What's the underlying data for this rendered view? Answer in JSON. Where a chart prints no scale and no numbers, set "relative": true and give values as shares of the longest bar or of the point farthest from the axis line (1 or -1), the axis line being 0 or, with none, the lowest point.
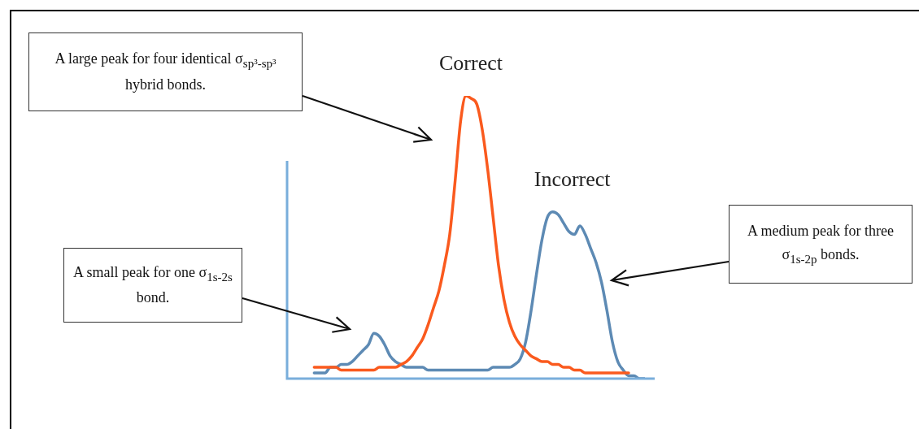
{
  "chart_data": {
    "type": "line",
    "relative": true,
    "legend": false,
    "marker": "none",
    "line_style": "solid",
    "categories": [
      null,
      null,
      null,
      null,
      null,
      null,
      null,
      null,
      null,
      null,
      null,
      null,
      null,
      null,
      null,
      null,
      null,
      null,
      null,
      null,
      null,
      null,
      null,
      null,
      null,
      null,
      null,
      null,
      null,
      null,
      null,
      null,
      null,
      null,
      null,
      null,
      null,
      null,
      null,
      null,
      null,
      null,
      null,
      null,
      null,
      null,
      null,
      null,
      null,
      null,
      null,
      null,
      null,
      null,
      null,
      null,
      null,
      null,
      null,
      null,
      null,
      null
    ],
    "series": [
      {
        "name": "Correct",
        "color": "#fa5a1e",
        "values": [
          0.04,
          0.04,
          0.04,
          0.04,
          0.04,
          0.03,
          0.03,
          0.03,
          0.03,
          0.03,
          0.03,
          0.03,
          0.04,
          0.04,
          0.04,
          0.04,
          0.05,
          0.06,
          0.08,
          0.11,
          0.14,
          0.19,
          0.25,
          0.31,
          0.4,
          0.51,
          0.7,
          0.91,
          1,
          0.99,
          0.97,
          0.88,
          0.74,
          0.57,
          0.4,
          0.28,
          0.2,
          0.15,
          0.12,
          0.1,
          0.08,
          0.07,
          0.06,
          0.06,
          0.05,
          0.05,
          0.04,
          0.04,
          0.03,
          0.03,
          0.02,
          0.02,
          0.02,
          0.02,
          0.02,
          0.02,
          0.02,
          0.02,
          0.02,
          null,
          null,
          null
        ]
      },
      {
        "name": "Incorrect",
        "color": "#5d8ab4",
        "values": [
          0.02,
          0.02,
          0.02,
          0.04,
          0.04,
          0.05,
          0.05,
          0.06,
          0.08,
          0.1,
          0.12,
          0.16,
          0.15,
          0.12,
          0.08,
          0.06,
          0.05,
          0.04,
          0.04,
          0.04,
          0.04,
          0.03,
          0.03,
          0.03,
          0.03,
          0.03,
          0.03,
          0.03,
          0.03,
          0.03,
          0.03,
          0.03,
          0.03,
          0.04,
          0.04,
          0.04,
          0.04,
          0.05,
          0.07,
          0.13,
          0.24,
          0.37,
          0.49,
          0.57,
          0.59,
          0.58,
          0.55,
          0.52,
          0.51,
          0.54,
          0.51,
          0.46,
          0.41,
          0.34,
          0.24,
          0.13,
          0.06,
          0.03,
          0.01,
          0.01,
          0,
          0
        ]
      }
    ],
    "annotations": [
      "A large peak for four identical σ$_{sp³-sp³}$ hybrid bonds.",
      "A small peak for one σ$_{1s-2s}$ bond.",
      "A medium peak for three σ$_{1s-2p}$ bonds."
    ]
  }
}
